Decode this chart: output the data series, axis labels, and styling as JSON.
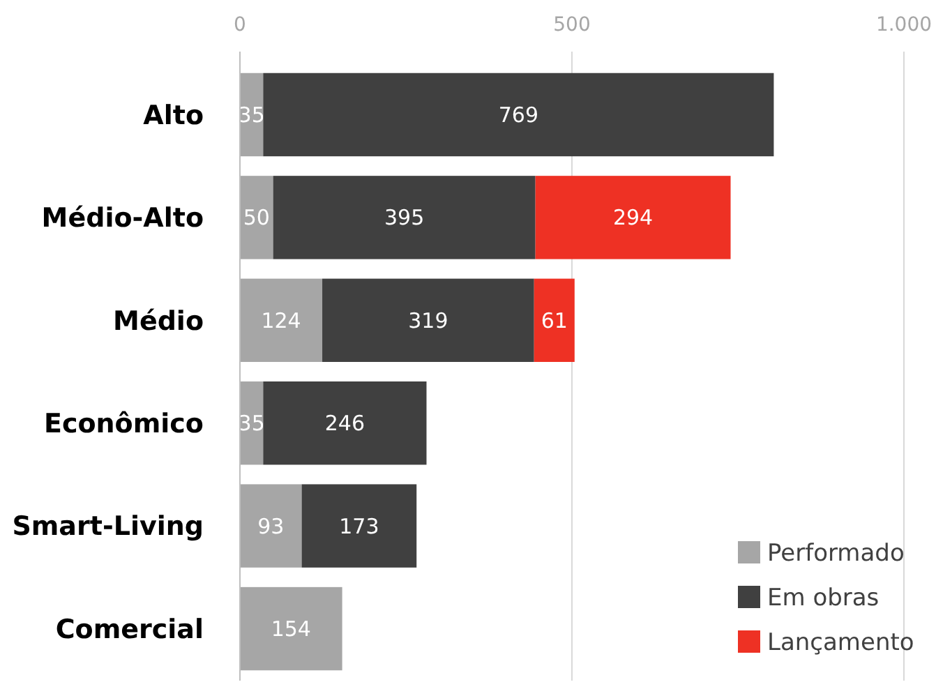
{
  "chart_data": {
    "type": "bar",
    "orientation": "horizontal",
    "stacked": true,
    "categories": [
      "Alto",
      "Médio-Alto",
      "Médio",
      "Econômico",
      "Smart-Living",
      "Comercial"
    ],
    "series": [
      {
        "name": "Performado",
        "color": "#a6a6a6",
        "values": [
          35,
          50,
          124,
          35,
          93,
          154
        ]
      },
      {
        "name": "Em obras",
        "color": "#404040",
        "values": [
          769,
          395,
          319,
          246,
          173,
          null
        ]
      },
      {
        "name": "Lançamento",
        "color": "#ee3124",
        "values": [
          null,
          294,
          61,
          null,
          null,
          null
        ]
      }
    ],
    "xlim": [
      0,
      1000
    ],
    "xticks": [
      0,
      500,
      {
        "value": 1000,
        "label": "1.000"
      }
    ],
    "grid": "x",
    "legend": "bottom right",
    "data_labels": true
  }
}
